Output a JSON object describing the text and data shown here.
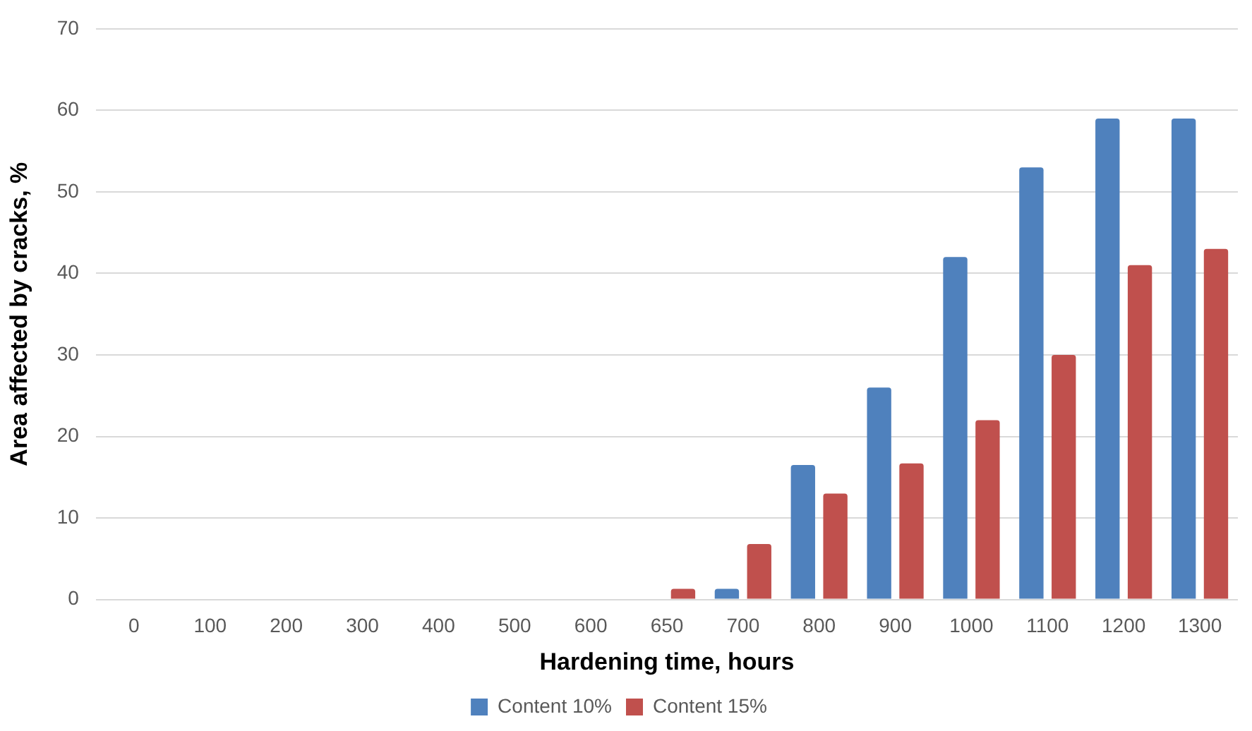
{
  "chart_data": {
    "type": "bar",
    "xlabel": "Hardening time, hours",
    "ylabel": "Area affected by cracks, %",
    "categories": [
      "0",
      "100",
      "200",
      "300",
      "400",
      "500",
      "600",
      "650",
      "700",
      "800",
      "900",
      "1000",
      "1100",
      "1200",
      "1300"
    ],
    "series": [
      {
        "name": "Content 10%",
        "color": "#4f81bd",
        "values": [
          0,
          0,
          0,
          0,
          0,
          0,
          0,
          0,
          1.3,
          16.5,
          26,
          42,
          53,
          59,
          59
        ]
      },
      {
        "name": "Content 15%",
        "color": "#c0504d",
        "values": [
          0,
          0,
          0,
          0,
          0,
          0,
          0,
          1.3,
          6.8,
          13,
          16.7,
          22,
          30,
          41,
          43
        ]
      }
    ],
    "ylim": [
      0,
      70
    ],
    "yticks": [
      0,
      10,
      20,
      30,
      40,
      50,
      60,
      70
    ],
    "grid": "y",
    "legend": "bottom"
  }
}
